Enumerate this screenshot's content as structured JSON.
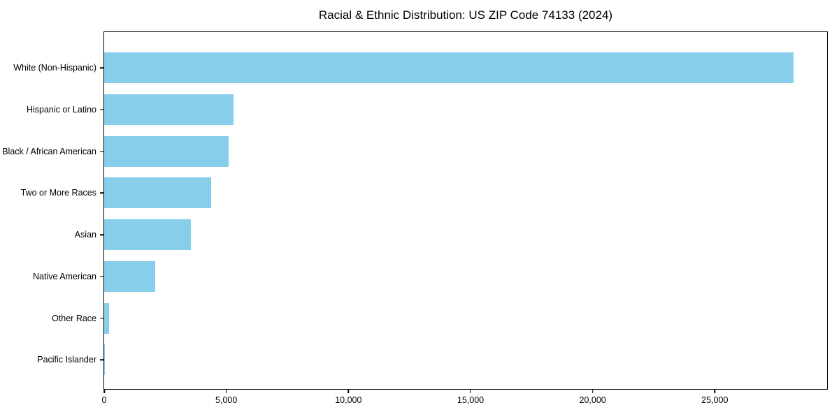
{
  "chart_data": {
    "type": "bar",
    "orientation": "horizontal",
    "title": "Racial & Ethnic Distribution: US ZIP Code 74133 (2024)",
    "categories": [
      "White (Non-Hispanic)",
      "Hispanic or Latino",
      "Black / African American",
      "Two or More Races",
      "Asian",
      "Native American",
      "Other Race",
      "Pacific Islander"
    ],
    "values": [
      28230,
      5290,
      5090,
      4370,
      3540,
      2090,
      190,
      20
    ],
    "xlabel": "",
    "ylabel": "",
    "xlim": [
      0,
      29600
    ],
    "xticks": [
      0,
      5000,
      10000,
      15000,
      20000,
      25000
    ],
    "xtick_labels": [
      "0",
      "5,000",
      "10,000",
      "15,000",
      "20,000",
      "25,000"
    ],
    "bar_color": "#87CEEB",
    "axis_color": "#000000",
    "background_color": "#ffffff",
    "grid": false,
    "legend": null
  }
}
